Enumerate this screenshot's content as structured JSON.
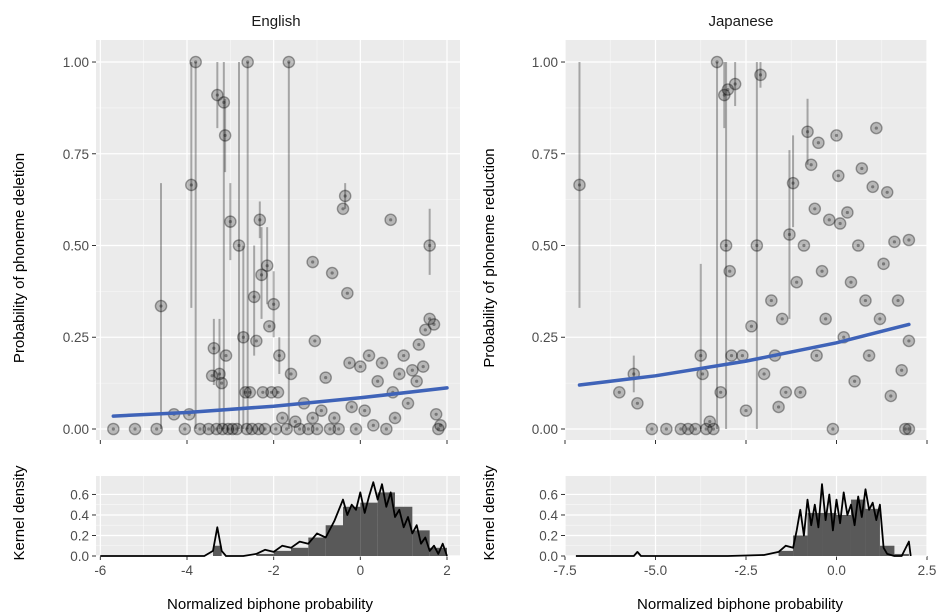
{
  "chart_data": [
    {
      "type": "scatter",
      "title": "English",
      "xlabel": "",
      "ylabel": "Probability of phoneme deletion",
      "xlim": [
        -6.1,
        2.3
      ],
      "ylim": [
        -0.03,
        1.06
      ],
      "yticks": [
        0,
        0.25,
        0.5,
        0.75,
        1
      ],
      "ytick_labels": [
        "0.00",
        "0.25",
        "0.50",
        "0.75",
        "1.00"
      ],
      "points": [
        {
          "x": -5.7,
          "y": 0.0
        },
        {
          "x": -5.2,
          "y": 0.0
        },
        {
          "x": -4.7,
          "y": 0.0
        },
        {
          "x": -4.6,
          "y": 0.335,
          "lo": 0.0,
          "hi": 0.67
        },
        {
          "x": -4.3,
          "y": 0.04
        },
        {
          "x": -4.05,
          "y": 0.0
        },
        {
          "x": -3.95,
          "y": 0.04
        },
        {
          "x": -3.9,
          "y": 0.665,
          "lo": 0.33,
          "hi": 1.0
        },
        {
          "x": -3.8,
          "y": 1.0,
          "lo": 0.0,
          "hi": 1.0
        },
        {
          "x": -3.7,
          "y": 0.0
        },
        {
          "x": -3.5,
          "y": 0.0
        },
        {
          "x": -3.42,
          "y": 0.145
        },
        {
          "x": -3.38,
          "y": 0.22,
          "lo": 0.12,
          "hi": 0.3
        },
        {
          "x": -3.32,
          "y": 0.0
        },
        {
          "x": -3.3,
          "y": 0.91,
          "lo": 0.82,
          "hi": 1.0
        },
        {
          "x": -3.25,
          "y": 0.15,
          "lo": 0.0,
          "hi": 0.3
        },
        {
          "x": -3.2,
          "y": 0.125
        },
        {
          "x": -3.18,
          "y": 0.0
        },
        {
          "x": -3.15,
          "y": 0.89,
          "lo": 0.0,
          "hi": 1.0
        },
        {
          "x": -3.12,
          "y": 0.8,
          "lo": 0.7,
          "hi": 0.9
        },
        {
          "x": -3.1,
          "y": 0.2
        },
        {
          "x": -3.05,
          "y": 0.0
        },
        {
          "x": -3.0,
          "y": 0.565,
          "lo": 0.46,
          "hi": 0.67
        },
        {
          "x": -2.95,
          "y": 0.0
        },
        {
          "x": -2.85,
          "y": 0.0
        },
        {
          "x": -2.8,
          "y": 0.5,
          "lo": 0.0,
          "hi": 1.0
        },
        {
          "x": -2.7,
          "y": 0.25,
          "lo": 0.0,
          "hi": 0.5
        },
        {
          "x": -2.65,
          "y": 0.1
        },
        {
          "x": -2.62,
          "y": 0.0
        },
        {
          "x": -2.6,
          "y": 1.0,
          "lo": 0.0,
          "hi": 1.0
        },
        {
          "x": -2.55,
          "y": 0.1
        },
        {
          "x": -2.5,
          "y": 0.0
        },
        {
          "x": -2.45,
          "y": 0.36,
          "lo": 0.2,
          "hi": 0.5
        },
        {
          "x": -2.4,
          "y": 0.24
        },
        {
          "x": -2.35,
          "y": 0.0
        },
        {
          "x": -2.32,
          "y": 0.57,
          "lo": 0.52,
          "hi": 0.62
        },
        {
          "x": -2.28,
          "y": 0.42,
          "lo": 0.3,
          "hi": 0.55
        },
        {
          "x": -2.25,
          "y": 0.1
        },
        {
          "x": -2.2,
          "y": 0.0
        },
        {
          "x": -2.15,
          "y": 0.445,
          "lo": 0.34,
          "hi": 0.55
        },
        {
          "x": -2.1,
          "y": 0.28
        },
        {
          "x": -2.05,
          "y": 0.1
        },
        {
          "x": -2.0,
          "y": 0.34,
          "lo": 0.25,
          "hi": 0.43
        },
        {
          "x": -1.95,
          "y": 0.0
        },
        {
          "x": -1.9,
          "y": 0.1
        },
        {
          "x": -1.87,
          "y": 0.2,
          "lo": 0.15,
          "hi": 0.25
        },
        {
          "x": -1.8,
          "y": 0.03
        },
        {
          "x": -1.7,
          "y": 0.0
        },
        {
          "x": -1.65,
          "y": 1.0,
          "lo": 0.0,
          "hi": 1.0
        },
        {
          "x": -1.6,
          "y": 0.15
        },
        {
          "x": -1.5,
          "y": 0.02
        },
        {
          "x": -1.4,
          "y": 0.0
        },
        {
          "x": -1.3,
          "y": 0.07
        },
        {
          "x": -1.2,
          "y": 0.0
        },
        {
          "x": -1.1,
          "y": 0.03
        },
        {
          "x": -1.1,
          "y": 0.455
        },
        {
          "x": -1.05,
          "y": 0.24
        },
        {
          "x": -1.0,
          "y": 0.0
        },
        {
          "x": -0.9,
          "y": 0.05
        },
        {
          "x": -0.8,
          "y": 0.14
        },
        {
          "x": -0.7,
          "y": 0.0
        },
        {
          "x": -0.65,
          "y": 0.425
        },
        {
          "x": -0.6,
          "y": 0.03
        },
        {
          "x": -0.5,
          "y": 0.0
        },
        {
          "x": -0.4,
          "y": 0.6
        },
        {
          "x": -0.35,
          "y": 0.635,
          "lo": 0.6,
          "hi": 0.67
        },
        {
          "x": -0.3,
          "y": 0.37
        },
        {
          "x": -0.25,
          "y": 0.18
        },
        {
          "x": -0.2,
          "y": 0.06
        },
        {
          "x": -0.1,
          "y": 0.0
        },
        {
          "x": 0.0,
          "y": 0.17
        },
        {
          "x": 0.1,
          "y": 0.05
        },
        {
          "x": 0.2,
          "y": 0.2
        },
        {
          "x": 0.3,
          "y": 0.01
        },
        {
          "x": 0.4,
          "y": 0.13
        },
        {
          "x": 0.5,
          "y": 0.18
        },
        {
          "x": 0.6,
          "y": 0.0
        },
        {
          "x": 0.7,
          "y": 0.57
        },
        {
          "x": 0.75,
          "y": 0.1
        },
        {
          "x": 0.8,
          "y": 0.03
        },
        {
          "x": 0.9,
          "y": 0.15
        },
        {
          "x": 1.0,
          "y": 0.2
        },
        {
          "x": 1.1,
          "y": 0.07
        },
        {
          "x": 1.2,
          "y": 0.16
        },
        {
          "x": 1.3,
          "y": 0.13
        },
        {
          "x": 1.35,
          "y": 0.23
        },
        {
          "x": 1.45,
          "y": 0.17
        },
        {
          "x": 1.5,
          "y": 0.27
        },
        {
          "x": 1.6,
          "y": 0.5,
          "lo": 0.42,
          "hi": 0.6
        },
        {
          "x": 1.6,
          "y": 0.3
        },
        {
          "x": 1.7,
          "y": 0.285
        },
        {
          "x": 1.75,
          "y": 0.04
        },
        {
          "x": 1.85,
          "y": 0.01
        },
        {
          "x": 1.8,
          "y": 0.0
        }
      ],
      "fit_line": {
        "x": [
          -5.7,
          -4,
          -2,
          0,
          2
        ],
        "y": [
          0.035,
          0.045,
          0.062,
          0.085,
          0.112
        ]
      },
      "density": {
        "ylabel": "Kernel density",
        "xlabel": "Normalized biphone probability",
        "xticks": [
          -6,
          -4,
          -2,
          0,
          2
        ],
        "xtick_labels": [
          "-6",
          "-4",
          "-2",
          "0",
          "2"
        ],
        "yticks": [
          0,
          0.2,
          0.4,
          0.6
        ],
        "ytick_labels": [
          "0.0",
          "0.2",
          "0.4",
          "0.6"
        ],
        "ylim": [
          0,
          0.78
        ],
        "hist": [
          {
            "x0": -3.4,
            "x1": -3.2,
            "h": 0.1
          },
          {
            "x0": -2.4,
            "x1": -2.0,
            "h": 0.02
          },
          {
            "x0": -2.0,
            "x1": -1.6,
            "h": 0.05
          },
          {
            "x0": -1.6,
            "x1": -1.2,
            "h": 0.08
          },
          {
            "x0": -1.2,
            "x1": -0.8,
            "h": 0.18
          },
          {
            "x0": -0.8,
            "x1": -0.4,
            "h": 0.3
          },
          {
            "x0": -0.4,
            "x1": 0.0,
            "h": 0.48
          },
          {
            "x0": 0.0,
            "x1": 0.4,
            "h": 0.52
          },
          {
            "x0": 0.4,
            "x1": 0.8,
            "h": 0.62
          },
          {
            "x0": 0.8,
            "x1": 1.2,
            "h": 0.48
          },
          {
            "x0": 1.2,
            "x1": 1.6,
            "h": 0.25
          },
          {
            "x0": 1.6,
            "x1": 2.0,
            "h": 0.08
          }
        ],
        "curve": {
          "x": [
            -6.0,
            -3.6,
            -3.4,
            -3.3,
            -3.2,
            -3.1,
            -2.7,
            -2.4,
            -2.2,
            -2.0,
            -1.8,
            -1.6,
            -1.4,
            -1.2,
            -1.0,
            -0.8,
            -0.6,
            -0.4,
            -0.3,
            -0.2,
            -0.1,
            0.0,
            0.1,
            0.2,
            0.3,
            0.4,
            0.5,
            0.6,
            0.7,
            0.8,
            0.9,
            1.0,
            1.1,
            1.2,
            1.3,
            1.4,
            1.5,
            1.6,
            1.7,
            1.8,
            1.9,
            2.0
          ],
          "y": [
            0.0,
            0.0,
            0.05,
            0.28,
            0.05,
            0.0,
            0.0,
            0.02,
            0.06,
            0.04,
            0.1,
            0.08,
            0.14,
            0.12,
            0.22,
            0.18,
            0.34,
            0.55,
            0.4,
            0.5,
            0.45,
            0.62,
            0.42,
            0.58,
            0.72,
            0.55,
            0.7,
            0.48,
            0.62,
            0.38,
            0.45,
            0.28,
            0.38,
            0.22,
            0.3,
            0.12,
            0.18,
            0.05,
            0.1,
            0.02,
            0.12,
            0.0
          ]
        }
      }
    },
    {
      "type": "scatter",
      "title": "Japanese",
      "xlabel": "",
      "ylabel": "Probability of phoneme reduction",
      "xlim": [
        -7.5,
        2.5
      ],
      "ylim": [
        -0.03,
        1.06
      ],
      "yticks": [
        0,
        0.25,
        0.5,
        0.75,
        1
      ],
      "ytick_labels": [
        "0.00",
        "0.25",
        "0.50",
        "0.75",
        "1.00"
      ],
      "points": [
        {
          "x": -7.1,
          "y": 0.665,
          "lo": 0.33,
          "hi": 1.0
        },
        {
          "x": -6.0,
          "y": 0.1
        },
        {
          "x": -5.6,
          "y": 0.15,
          "lo": 0.1,
          "hi": 0.2
        },
        {
          "x": -5.5,
          "y": 0.07
        },
        {
          "x": -5.1,
          "y": 0.0
        },
        {
          "x": -4.7,
          "y": 0.0
        },
        {
          "x": -4.3,
          "y": 0.0
        },
        {
          "x": -4.1,
          "y": 0.0
        },
        {
          "x": -3.9,
          "y": 0.0
        },
        {
          "x": -3.75,
          "y": 0.2,
          "lo": 0.0,
          "hi": 0.45
        },
        {
          "x": -3.7,
          "y": 0.15
        },
        {
          "x": -3.6,
          "y": 0.0
        },
        {
          "x": -3.5,
          "y": 0.02
        },
        {
          "x": -3.4,
          "y": 0.0
        },
        {
          "x": -3.3,
          "y": 1.0,
          "lo": 0.0,
          "hi": 1.0
        },
        {
          "x": -3.2,
          "y": 0.1
        },
        {
          "x": -3.1,
          "y": 0.91,
          "lo": 0.82,
          "hi": 1.0
        },
        {
          "x": -3.05,
          "y": 0.5,
          "lo": 0.0,
          "hi": 1.0
        },
        {
          "x": -3.0,
          "y": 0.925
        },
        {
          "x": -2.95,
          "y": 0.43
        },
        {
          "x": -2.9,
          "y": 0.2
        },
        {
          "x": -2.8,
          "y": 0.94,
          "lo": 0.88,
          "hi": 1.0
        },
        {
          "x": -2.6,
          "y": 0.2
        },
        {
          "x": -2.5,
          "y": 0.05
        },
        {
          "x": -2.35,
          "y": 0.28
        },
        {
          "x": -2.2,
          "y": 0.5,
          "lo": 0.0,
          "hi": 1.0
        },
        {
          "x": -2.1,
          "y": 0.965,
          "lo": 0.93,
          "hi": 1.0
        },
        {
          "x": -2.0,
          "y": 0.15
        },
        {
          "x": -1.8,
          "y": 0.35
        },
        {
          "x": -1.7,
          "y": 0.2
        },
        {
          "x": -1.6,
          "y": 0.06
        },
        {
          "x": -1.5,
          "y": 0.3
        },
        {
          "x": -1.4,
          "y": 0.1
        },
        {
          "x": -1.3,
          "y": 0.53,
          "lo": 0.3,
          "hi": 0.76
        },
        {
          "x": -1.2,
          "y": 0.67,
          "lo": 0.55,
          "hi": 0.8
        },
        {
          "x": -1.1,
          "y": 0.4
        },
        {
          "x": -1.0,
          "y": 0.1
        },
        {
          "x": -0.9,
          "y": 0.5
        },
        {
          "x": -0.8,
          "y": 0.81,
          "lo": 0.72,
          "hi": 0.9
        },
        {
          "x": -0.7,
          "y": 0.72
        },
        {
          "x": -0.6,
          "y": 0.6
        },
        {
          "x": -0.55,
          "y": 0.2
        },
        {
          "x": -0.5,
          "y": 0.78
        },
        {
          "x": -0.4,
          "y": 0.43
        },
        {
          "x": -0.3,
          "y": 0.3
        },
        {
          "x": -0.2,
          "y": 0.57
        },
        {
          "x": -0.1,
          "y": 0.0
        },
        {
          "x": 0.0,
          "y": 0.8
        },
        {
          "x": 0.05,
          "y": 0.69
        },
        {
          "x": 0.1,
          "y": 0.56
        },
        {
          "x": 0.2,
          "y": 0.25
        },
        {
          "x": 0.3,
          "y": 0.59
        },
        {
          "x": 0.4,
          "y": 0.4
        },
        {
          "x": 0.5,
          "y": 0.13
        },
        {
          "x": 0.6,
          "y": 0.5
        },
        {
          "x": 0.7,
          "y": 0.71
        },
        {
          "x": 0.8,
          "y": 0.35
        },
        {
          "x": 0.9,
          "y": 0.2
        },
        {
          "x": 1.0,
          "y": 0.66
        },
        {
          "x": 1.1,
          "y": 0.82
        },
        {
          "x": 1.2,
          "y": 0.3
        },
        {
          "x": 1.3,
          "y": 0.45
        },
        {
          "x": 1.4,
          "y": 0.645
        },
        {
          "x": 1.5,
          "y": 0.09
        },
        {
          "x": 1.6,
          "y": 0.51
        },
        {
          "x": 1.7,
          "y": 0.35
        },
        {
          "x": 1.8,
          "y": 0.16
        },
        {
          "x": 1.9,
          "y": 0.0
        },
        {
          "x": 2.0,
          "y": 0.515
        },
        {
          "x": 2.0,
          "y": 0.24
        },
        {
          "x": 2.0,
          "y": 0.0
        }
      ],
      "fit_line": {
        "x": [
          -7.1,
          -5,
          -2.5,
          0,
          2
        ],
        "y": [
          0.12,
          0.145,
          0.185,
          0.235,
          0.285
        ]
      },
      "density": {
        "ylabel": "Kernel density",
        "xlabel": "Normalized biphone probability",
        "xticks": [
          -7.5,
          -5,
          -2.5,
          0,
          2.5
        ],
        "xtick_labels": [
          "-7.5",
          "-5.0",
          "-2.5",
          "0.0",
          "2.5"
        ],
        "yticks": [
          0,
          0.2,
          0.4,
          0.6
        ],
        "ytick_labels": [
          "0.0",
          "0.2",
          "0.4",
          "0.6"
        ],
        "ylim": [
          0,
          0.78
        ],
        "hist": [
          {
            "x0": -1.6,
            "x1": -1.2,
            "h": 0.05
          },
          {
            "x0": -1.2,
            "x1": -0.8,
            "h": 0.2
          },
          {
            "x0": -0.8,
            "x1": -0.4,
            "h": 0.42
          },
          {
            "x0": -0.4,
            "x1": 0.0,
            "h": 0.42
          },
          {
            "x0": 0.0,
            "x1": 0.4,
            "h": 0.4
          },
          {
            "x0": 0.4,
            "x1": 0.8,
            "h": 0.55
          },
          {
            "x0": 0.8,
            "x1": 1.2,
            "h": 0.46
          },
          {
            "x0": 1.2,
            "x1": 1.6,
            "h": 0.1
          },
          {
            "x0": 1.6,
            "x1": 2.0,
            "h": 0.02
          }
        ],
        "curve": {
          "x": [
            -7.2,
            -6.0,
            -5.6,
            -5.5,
            -5.4,
            -3.0,
            -2.0,
            -1.6,
            -1.4,
            -1.2,
            -1.1,
            -1.0,
            -0.9,
            -0.8,
            -0.7,
            -0.6,
            -0.5,
            -0.4,
            -0.3,
            -0.2,
            -0.1,
            0.0,
            0.1,
            0.2,
            0.3,
            0.4,
            0.5,
            0.6,
            0.7,
            0.8,
            0.9,
            1.0,
            1.1,
            1.2,
            1.3,
            1.4,
            1.6,
            1.8,
            2.0,
            2.05
          ],
          "y": [
            0.0,
            0.0,
            0.0,
            0.04,
            0.0,
            0.0,
            0.01,
            0.04,
            0.1,
            0.08,
            0.25,
            0.45,
            0.2,
            0.55,
            0.3,
            0.5,
            0.28,
            0.7,
            0.35,
            0.6,
            0.25,
            0.55,
            0.32,
            0.62,
            0.4,
            0.5,
            0.3,
            0.58,
            0.38,
            0.65,
            0.45,
            0.52,
            0.35,
            0.5,
            0.08,
            0.02,
            0.0,
            0.0,
            0.14,
            0.0
          ]
        }
      }
    }
  ]
}
